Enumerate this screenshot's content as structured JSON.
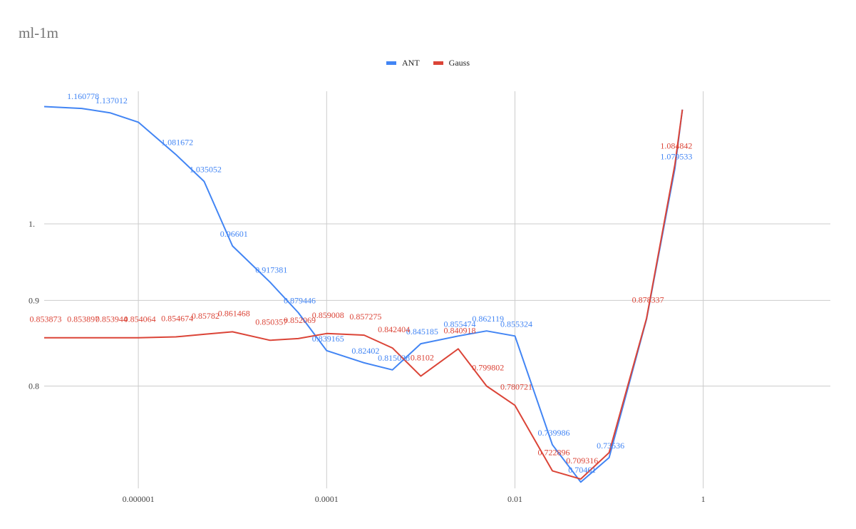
{
  "chart_data": {
    "type": "line",
    "title": "ml-1m",
    "xscale": "log",
    "yscale": "log",
    "x_ticks": [
      {
        "value": 1e-06,
        "label": "0.000001"
      },
      {
        "value": 0.0001,
        "label": "0.0001"
      },
      {
        "value": 0.01,
        "label": "0.01"
      },
      {
        "value": 1,
        "label": "1"
      }
    ],
    "y_ticks": [
      {
        "value": 0.8,
        "label": "0.8"
      },
      {
        "value": 0.9,
        "label": "0.9"
      },
      {
        "value": 1.0,
        "label": "1."
      }
    ],
    "grid": true,
    "legend_position": "top",
    "series": [
      {
        "name": "ANT",
        "color": "#4285f4",
        "points": [
          {
            "x": 1e-07,
            "y": 1.175,
            "label": ""
          },
          {
            "x": 2.5e-07,
            "y": 1.172,
            "label": "1.160778"
          },
          {
            "x": 5e-07,
            "y": 1.165,
            "label": "1.137012"
          },
          {
            "x": 1e-06,
            "y": 1.15,
            "label": ""
          },
          {
            "x": 2.5e-06,
            "y": 1.1,
            "label": "1.081672"
          },
          {
            "x": 5e-06,
            "y": 1.06,
            "label": "1.035052"
          },
          {
            "x": 1e-05,
            "y": 0.97,
            "label": "0.96601"
          },
          {
            "x": 2.5e-05,
            "y": 0.923,
            "label": "0.917381"
          },
          {
            "x": 5e-05,
            "y": 0.885,
            "label": "0.879446"
          },
          {
            "x": 0.0001,
            "y": 0.84,
            "label": "0.839165"
          },
          {
            "x": 0.00025,
            "y": 0.826,
            "label": "0.82402"
          },
          {
            "x": 0.0005,
            "y": 0.818,
            "label": "0.815038"
          },
          {
            "x": 0.001,
            "y": 0.848,
            "label": "0.845185"
          },
          {
            "x": 0.0025,
            "y": 0.857,
            "label": "0.855474"
          },
          {
            "x": 0.005,
            "y": 0.863,
            "label": "0.862119"
          },
          {
            "x": 0.01,
            "y": 0.857,
            "label": "0.855324"
          },
          {
            "x": 0.025,
            "y": 0.738,
            "label": "0.739986"
          },
          {
            "x": 0.05,
            "y": 0.701,
            "label": "0.70461"
          },
          {
            "x": 0.1,
            "y": 0.725,
            "label": "0.73536"
          },
          {
            "x": 0.25,
            "y": 0.877,
            "label": ""
          },
          {
            "x": 0.5,
            "y": 1.079,
            "label": "1.079533"
          },
          {
            "x": 0.6,
            "y": 1.17,
            "label": ""
          }
        ]
      },
      {
        "name": "Gauss",
        "color": "#db4437",
        "points": [
          {
            "x": 1e-07,
            "y": 0.855,
            "label": "0.853873"
          },
          {
            "x": 2.5e-07,
            "y": 0.855,
            "label": "0.853897"
          },
          {
            "x": 5e-07,
            "y": 0.855,
            "label": "0.853944"
          },
          {
            "x": 1e-06,
            "y": 0.855,
            "label": "0.854064"
          },
          {
            "x": 2.5e-06,
            "y": 0.856,
            "label": "0.854674"
          },
          {
            "x": 5e-06,
            "y": 0.859,
            "label": "0.85782"
          },
          {
            "x": 1e-05,
            "y": 0.862,
            "label": "0.861468"
          },
          {
            "x": 2.5e-05,
            "y": 0.852,
            "label": "0.850357"
          },
          {
            "x": 5e-05,
            "y": 0.854,
            "label": "0.852069"
          },
          {
            "x": 0.0001,
            "y": 0.86,
            "label": "0.859008"
          },
          {
            "x": 0.00025,
            "y": 0.858,
            "label": "0.857275"
          },
          {
            "x": 0.0005,
            "y": 0.843,
            "label": "0.842404"
          },
          {
            "x": 0.001,
            "y": 0.811,
            "label": "0.8102"
          },
          {
            "x": 0.0025,
            "y": 0.842,
            "label": "0.840918"
          },
          {
            "x": 0.005,
            "y": 0.8,
            "label": "0.799802"
          },
          {
            "x": 0.01,
            "y": 0.779,
            "label": "0.780721"
          },
          {
            "x": 0.025,
            "y": 0.712,
            "label": "0.722896"
          },
          {
            "x": 0.05,
            "y": 0.704,
            "label": "0.709316"
          },
          {
            "x": 0.1,
            "y": 0.73,
            "label": ""
          },
          {
            "x": 0.25,
            "y": 0.878,
            "label": "0.878337"
          },
          {
            "x": 0.5,
            "y": 1.085,
            "label": "1.084842"
          },
          {
            "x": 0.6,
            "y": 1.17,
            "label": ""
          }
        ]
      }
    ]
  }
}
